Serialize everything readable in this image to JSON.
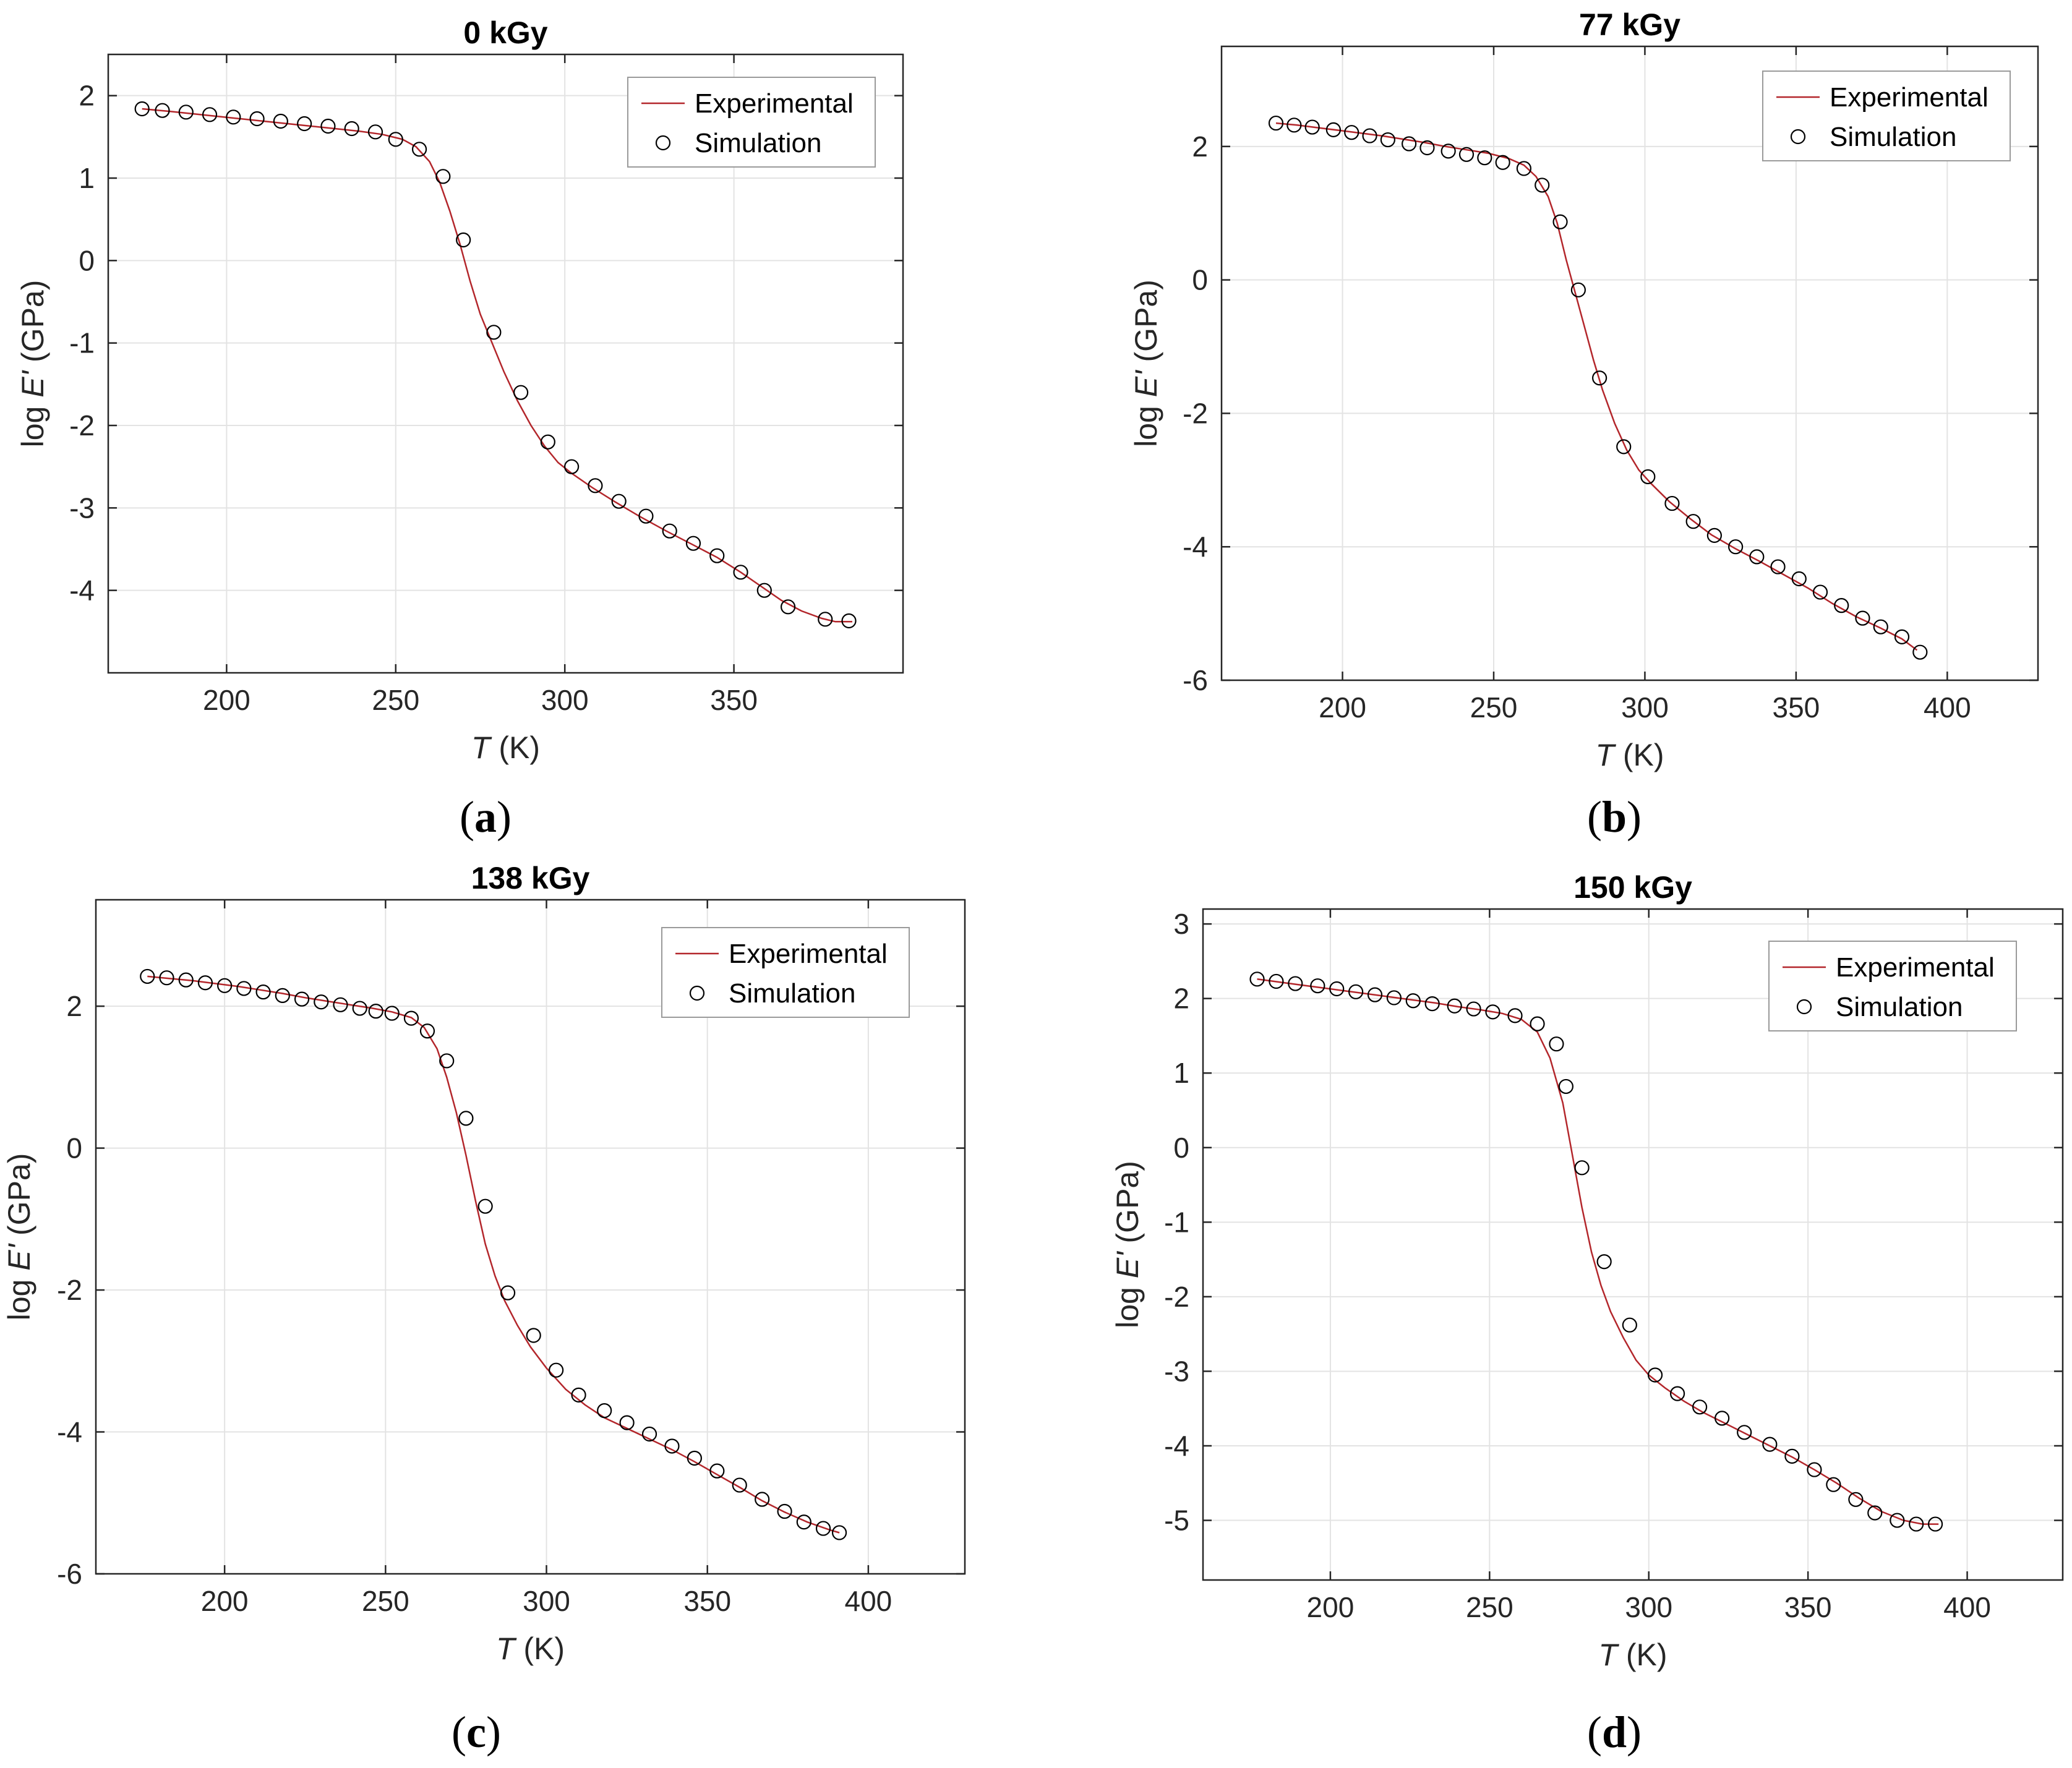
{
  "colors": {
    "experimental_line": "#b3262b",
    "marker": "#000000",
    "grid": "#e3e3e3",
    "axis": "#262626"
  },
  "chart_data": [
    {
      "type": "line",
      "panel": "a",
      "title": "0 kGy",
      "xlabel_italic": "T",
      "xlabel_rest": " (K)",
      "ylabel_pre": "log ",
      "ylabel_italic": "E'",
      "ylabel_rest": " (GPa)",
      "xlim": [
        165,
        400
      ],
      "ylim": [
        -5,
        2.5
      ],
      "xticks": [
        200,
        250,
        300,
        350
      ],
      "yticks": [
        -4,
        -3,
        -2,
        -1,
        0,
        1,
        2
      ],
      "grid": true,
      "legend_position": "top-right",
      "legend": [
        "Experimental",
        "Simulation"
      ],
      "series": [
        {
          "name": "Experimental",
          "style": "line",
          "x": [
            175,
            183,
            190,
            197,
            204,
            211,
            218,
            225,
            232,
            239,
            246,
            252,
            256,
            260,
            263,
            266,
            269,
            272,
            275,
            278,
            282,
            286,
            290,
            294,
            298,
            302,
            308,
            315,
            322,
            330,
            338,
            345,
            352,
            358,
            364,
            370,
            376,
            380,
            385
          ],
          "y": [
            1.84,
            1.81,
            1.78,
            1.75,
            1.72,
            1.69,
            1.66,
            1.63,
            1.6,
            1.57,
            1.53,
            1.47,
            1.38,
            1.2,
            0.95,
            0.6,
            0.2,
            -0.25,
            -0.65,
            -0.95,
            -1.35,
            -1.7,
            -2.0,
            -2.25,
            -2.45,
            -2.58,
            -2.75,
            -2.93,
            -3.1,
            -3.28,
            -3.45,
            -3.6,
            -3.78,
            -3.95,
            -4.12,
            -4.25,
            -4.34,
            -4.38,
            -4.38
          ]
        },
        {
          "name": "Simulation",
          "style": "markers",
          "x": [
            175,
            181,
            188,
            195,
            202,
            209,
            216,
            223,
            230,
            237,
            244,
            250,
            257,
            264,
            270,
            279,
            287,
            295,
            302,
            309,
            316,
            324,
            331,
            338,
            345,
            352,
            359,
            366,
            377,
            384
          ],
          "y": [
            1.84,
            1.82,
            1.8,
            1.77,
            1.74,
            1.72,
            1.69,
            1.66,
            1.63,
            1.6,
            1.56,
            1.47,
            1.35,
            1.02,
            0.25,
            -0.87,
            -1.6,
            -2.2,
            -2.5,
            -2.73,
            -2.92,
            -3.1,
            -3.28,
            -3.43,
            -3.58,
            -3.78,
            -4.0,
            -4.2,
            -4.35,
            -4.37
          ]
        }
      ]
    },
    {
      "type": "line",
      "panel": "b",
      "title": "77 kGy",
      "xlabel_italic": "T",
      "xlabel_rest": " (K)",
      "ylabel_pre": "log ",
      "ylabel_italic": "E'",
      "ylabel_rest": " (GPa)",
      "xlim": [
        160,
        430
      ],
      "ylim": [
        -6,
        3.5
      ],
      "xticks": [
        200,
        250,
        300,
        350,
        400
      ],
      "yticks": [
        -6,
        -4,
        -2,
        0,
        2
      ],
      "grid": true,
      "legend_position": "top-right",
      "legend": [
        "Experimental",
        "Simulation"
      ],
      "series": [
        {
          "name": "Experimental",
          "style": "line",
          "x": [
            178,
            185,
            192,
            199,
            206,
            213,
            220,
            227,
            234,
            241,
            248,
            255,
            260,
            264,
            268,
            271,
            274,
            277,
            280,
            283,
            286,
            290,
            294,
            298,
            302,
            308,
            315,
            322,
            330,
            338,
            346,
            354,
            362,
            370,
            378,
            385,
            390
          ],
          "y": [
            2.35,
            2.32,
            2.28,
            2.24,
            2.2,
            2.16,
            2.11,
            2.06,
            2.0,
            1.95,
            1.9,
            1.82,
            1.72,
            1.55,
            1.25,
            0.85,
            0.3,
            -0.2,
            -0.7,
            -1.2,
            -1.65,
            -2.15,
            -2.55,
            -2.85,
            -3.05,
            -3.32,
            -3.58,
            -3.82,
            -4.03,
            -4.22,
            -4.42,
            -4.62,
            -4.85,
            -5.05,
            -5.22,
            -5.38,
            -5.55
          ]
        },
        {
          "name": "Simulation",
          "style": "markers",
          "x": [
            178,
            184,
            190,
            197,
            203,
            209,
            215,
            222,
            228,
            235,
            241,
            247,
            253,
            260,
            266,
            272,
            278,
            285,
            293,
            301,
            309,
            316,
            323,
            330,
            337,
            344,
            351,
            358,
            365,
            372,
            378,
            385,
            391
          ],
          "y": [
            2.35,
            2.32,
            2.29,
            2.25,
            2.21,
            2.16,
            2.1,
            2.04,
            1.98,
            1.93,
            1.88,
            1.83,
            1.76,
            1.67,
            1.42,
            0.87,
            -0.15,
            -1.47,
            -2.5,
            -2.95,
            -3.35,
            -3.62,
            -3.83,
            -4.0,
            -4.15,
            -4.3,
            -4.48,
            -4.68,
            -4.88,
            -5.07,
            -5.2,
            -5.35,
            -5.58
          ]
        }
      ]
    },
    {
      "type": "line",
      "panel": "c",
      "title": "138 kGy",
      "xlabel_italic": "T",
      "xlabel_rest": " (K)",
      "ylabel_pre": "log ",
      "ylabel_italic": "E'",
      "ylabel_rest": " (GPa)",
      "xlim": [
        160,
        430
      ],
      "ylim": [
        -6,
        3.5
      ],
      "xticks": [
        200,
        250,
        300,
        350,
        400
      ],
      "yticks": [
        -6,
        -4,
        -2,
        0,
        2
      ],
      "grid": true,
      "legend_position": "top-right",
      "legend": [
        "Experimental",
        "Simulation"
      ],
      "series": [
        {
          "name": "Experimental",
          "style": "line",
          "x": [
            176,
            183,
            190,
            197,
            204,
            211,
            218,
            225,
            232,
            239,
            246,
            252,
            258,
            262,
            266,
            269,
            272,
            275,
            278,
            281,
            284,
            287,
            291,
            295,
            300,
            306,
            312,
            318,
            325,
            332,
            339,
            346,
            353,
            360,
            367,
            374,
            381,
            388,
            391
          ],
          "y": [
            2.42,
            2.39,
            2.36,
            2.32,
            2.28,
            2.23,
            2.18,
            2.12,
            2.07,
            2.02,
            1.97,
            1.92,
            1.84,
            1.7,
            1.4,
            1.0,
            0.5,
            -0.1,
            -0.75,
            -1.35,
            -1.8,
            -2.15,
            -2.5,
            -2.8,
            -3.1,
            -3.4,
            -3.62,
            -3.8,
            -3.95,
            -4.1,
            -4.25,
            -4.42,
            -4.6,
            -4.78,
            -4.97,
            -5.13,
            -5.27,
            -5.38,
            -5.42
          ]
        },
        {
          "name": "Simulation",
          "style": "markers",
          "x": [
            176,
            182,
            188,
            194,
            200,
            206,
            212,
            218,
            224,
            230,
            236,
            242,
            247,
            252,
            258,
            263,
            269,
            275,
            281,
            288,
            296,
            303,
            310,
            318,
            325,
            332,
            339,
            346,
            353,
            360,
            367,
            374,
            380,
            386,
            391
          ],
          "y": [
            2.42,
            2.4,
            2.37,
            2.33,
            2.29,
            2.25,
            2.2,
            2.15,
            2.1,
            2.06,
            2.02,
            1.97,
            1.93,
            1.9,
            1.83,
            1.65,
            1.23,
            0.42,
            -0.82,
            -2.04,
            -2.64,
            -3.13,
            -3.48,
            -3.7,
            -3.87,
            -4.03,
            -4.2,
            -4.37,
            -4.55,
            -4.75,
            -4.95,
            -5.12,
            -5.27,
            -5.36,
            -5.42
          ]
        }
      ]
    },
    {
      "type": "line",
      "panel": "d",
      "title": "150 kGy",
      "xlabel_italic": "T",
      "xlabel_rest": " (K)",
      "ylabel_pre": "log ",
      "ylabel_italic": "E'",
      "ylabel_rest": " (GPa)",
      "xlim": [
        160,
        430
      ],
      "ylim": [
        -5.8,
        3.2
      ],
      "xticks": [
        200,
        250,
        300,
        350,
        400
      ],
      "yticks": [
        -5,
        -4,
        -3,
        -2,
        -1,
        0,
        1,
        2,
        3
      ],
      "grid": true,
      "legend_position": "top-right",
      "legend": [
        "Experimental",
        "Simulation"
      ],
      "series": [
        {
          "name": "Experimental",
          "style": "line",
          "x": [
            177,
            184,
            191,
            198,
            205,
            212,
            219,
            226,
            233,
            240,
            247,
            254,
            260,
            265,
            269,
            273,
            276,
            279,
            282,
            285,
            288,
            292,
            296,
            300,
            305,
            311,
            317,
            324,
            331,
            338,
            345,
            352,
            359,
            366,
            373,
            380,
            386,
            391
          ],
          "y": [
            2.26,
            2.22,
            2.18,
            2.14,
            2.1,
            2.06,
            2.02,
            1.98,
            1.94,
            1.89,
            1.85,
            1.8,
            1.72,
            1.55,
            1.2,
            0.6,
            -0.1,
            -0.8,
            -1.4,
            -1.85,
            -2.2,
            -2.55,
            -2.85,
            -3.05,
            -3.22,
            -3.4,
            -3.55,
            -3.7,
            -3.85,
            -4.0,
            -4.15,
            -4.32,
            -4.5,
            -4.7,
            -4.88,
            -5.0,
            -5.05,
            -5.05
          ]
        },
        {
          "name": "Simulation",
          "style": "markers",
          "x": [
            177,
            183,
            189,
            196,
            202,
            208,
            214,
            220,
            226,
            232,
            239,
            245,
            251,
            258,
            265,
            271,
            274,
            279,
            286,
            294,
            302,
            309,
            316,
            323,
            330,
            338,
            345,
            352,
            358,
            365,
            371,
            378,
            384,
            390
          ],
          "y": [
            2.26,
            2.23,
            2.2,
            2.17,
            2.13,
            2.09,
            2.05,
            2.01,
            1.97,
            1.93,
            1.9,
            1.86,
            1.82,
            1.77,
            1.66,
            1.39,
            0.82,
            -0.27,
            -1.53,
            -2.38,
            -3.05,
            -3.3,
            -3.48,
            -3.63,
            -3.82,
            -3.98,
            -4.14,
            -4.32,
            -4.52,
            -4.72,
            -4.9,
            -5.0,
            -5.05,
            -5.05
          ]
        }
      ]
    }
  ],
  "panels": [
    {
      "open": "(",
      "letter": "a",
      "close": ")"
    },
    {
      "open": "(",
      "letter": "b",
      "close": ")"
    },
    {
      "open": "(",
      "letter": "c",
      "close": ")"
    },
    {
      "open": "(",
      "letter": "d",
      "close": ")"
    }
  ]
}
